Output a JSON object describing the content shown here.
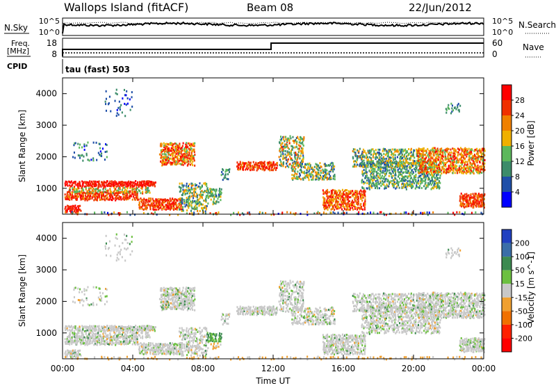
{
  "header": {
    "station": "Wallops Island (fitACF)",
    "beam": "Beam 08",
    "date": "22/Jun/2012"
  },
  "sky_panel": {
    "left_label": "N.Sky",
    "right_label": "N.Search",
    "ticks_left": [
      "10^5",
      "10^0"
    ],
    "ticks_right": [
      "10^5",
      "10^0"
    ]
  },
  "freq_panel": {
    "left_label_top": "Freq.",
    "left_label_unit": "[MHz]",
    "right_label": "Nave",
    "ticks_left": [
      "18",
      "8"
    ],
    "ticks_right": [
      "60",
      "0"
    ],
    "cpid_label": "CPID",
    "cpid_text": "tau (fast) 503"
  },
  "chart_data": [
    {
      "type": "heatmap",
      "name": "power",
      "ylabel": "Slant Range [km]",
      "yticks": [
        "1000",
        "2000",
        "3000",
        "4000"
      ],
      "ylim": [
        180,
        4500
      ],
      "colorbar_label": "Power [dB]",
      "colorbar_ticks": [
        "4",
        "8",
        "12",
        "16",
        "20",
        "24",
        "28"
      ],
      "colors": [
        "#0000ff",
        "#1f4fa8",
        "#3c8c6a",
        "#5cb85c",
        "#f0b000",
        "#f08000",
        "#f03000",
        "#ff0000"
      ]
    },
    {
      "type": "heatmap",
      "name": "velocity",
      "ylabel": "Slant Range [km]",
      "yticks": [
        "1000",
        "2000",
        "3000",
        "4000"
      ],
      "ylim": [
        180,
        4500
      ],
      "colorbar_label": "Velocity [m s^-1]",
      "colorbar_ticks": [
        "200",
        "100",
        "50",
        "15",
        "-15",
        "-50",
        "-100",
        "-200"
      ],
      "colors": [
        "#2040c0",
        "#3a6ea8",
        "#3c8a50",
        "#6cc040",
        "#c8c8c8",
        "#f0a030",
        "#f07000",
        "#ff2000",
        "#ff0000"
      ]
    }
  ],
  "x_axis": {
    "ticks": [
      "00:00",
      "04:00",
      "08:00",
      "12:00",
      "16:00",
      "20:00",
      "00:00"
    ],
    "label": "Time UT"
  }
}
